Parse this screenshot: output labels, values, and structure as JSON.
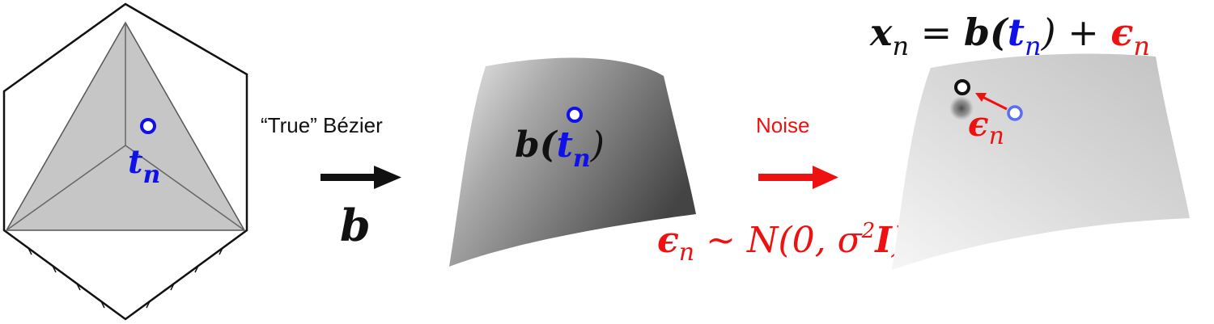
{
  "colors": {
    "blue": "#1010e8",
    "red": "#ee1111",
    "black": "#111111",
    "simplex_fill": "#c6c6c6"
  },
  "labels": {
    "true_bezier": "“True” Bézier",
    "b_symbol": "b",
    "noise": "Noise",
    "tn": {
      "t": "t",
      "n": "n"
    },
    "b_of_tn": {
      "b": "b(",
      "t": "t",
      "n": "n",
      "close": ")"
    },
    "equation": {
      "x": "x",
      "n1": "n",
      "eq": " = ",
      "b": "b(",
      "t": "t",
      "n2": "n",
      "plus": ") + ",
      "eps": "ϵ",
      "n3": "n"
    },
    "eps_label": {
      "eps": "ϵ",
      "n": "n"
    },
    "noise_dist": {
      "eps": "ϵ",
      "n": "n",
      "sim": " ~ ",
      "N": "N",
      "open": "(0, ",
      "sigma": "σ",
      "two": "2",
      "I": "I",
      "close": ")"
    }
  },
  "icons": [
    "right-arrow-black",
    "right-arrow-red",
    "sample-point-circle"
  ]
}
